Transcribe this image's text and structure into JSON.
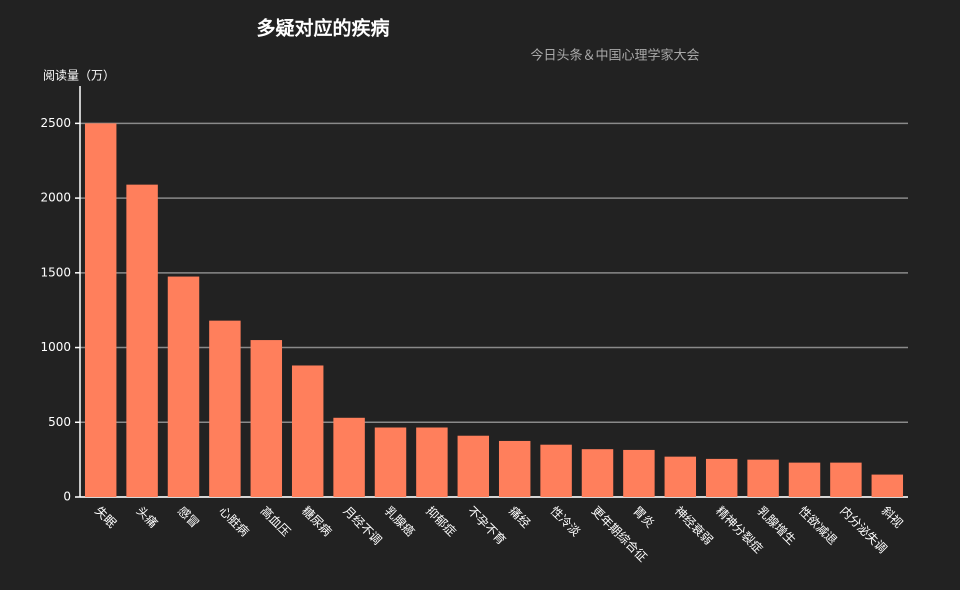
{
  "chart_data": {
    "type": "bar",
    "title": "多疑对应的疾病",
    "subtitle": "今日头条＆中国心理学家大会",
    "y_label": "阅读量（万）",
    "categories": [
      "失眠",
      "头痛",
      "感冒",
      "心脏病",
      "高血压",
      "糖尿病",
      "月经不调",
      "乳腺癌",
      "抑郁症",
      "不孕不育",
      "痛经",
      "性冷淡",
      "更年期综合征",
      "胃炎",
      "神经衰弱",
      "精神分裂症",
      "乳腺增生",
      "性欲减退",
      "内分泌失调",
      "斜视"
    ],
    "values": [
      2500,
      2090,
      1475,
      1180,
      1050,
      880,
      530,
      465,
      465,
      410,
      375,
      350,
      320,
      315,
      270,
      255,
      250,
      230,
      230,
      150
    ],
    "color": "#ff7f5c",
    "ylim": [
      0,
      2750
    ],
    "yticks": [
      0,
      500,
      1000,
      1500,
      2000,
      2500
    ],
    "grid": true
  }
}
